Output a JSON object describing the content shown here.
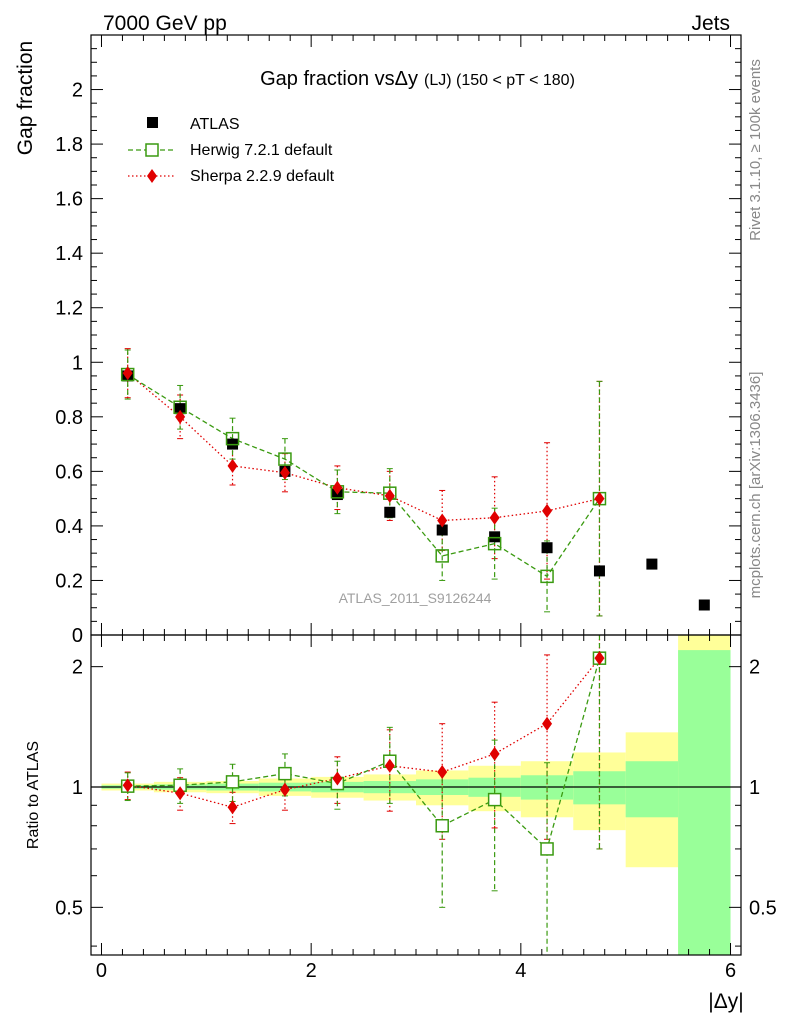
{
  "header": {
    "energy": "7000 GeV pp",
    "category": "Jets"
  },
  "chart_data": {
    "type": "scatter",
    "title": "Gap fraction vsΔy",
    "title_suffix": "(LJ) (150 < pT < 180)",
    "xlabel": "|Δy|",
    "ylabel": "Gap fraction",
    "ratio_ylabel": "Ratio to ATLAS",
    "xlim": [
      -0.1,
      6.1
    ],
    "ylim": [
      0,
      2.2
    ],
    "ratio_ylim": [
      0.38,
      2.4
    ],
    "x_ticks": [
      "0",
      "2",
      "4",
      "6"
    ],
    "y_ticks": [
      "0",
      "0.2",
      "0.4",
      "0.6",
      "0.8",
      "1",
      "1.2",
      "1.4",
      "1.6",
      "1.8",
      "2"
    ],
    "ratio_ticks": [
      "0.5",
      "1",
      "2"
    ],
    "analysis_tag": "ATLAS_2011_S9126244",
    "side_label_top": "Rivet 3.1.10, ≥ 100k events",
    "side_label_bottom": "mcplots.cern.ch [arXiv:1306.3436]",
    "x": [
      0.25,
      0.75,
      1.25,
      1.75,
      2.25,
      2.75,
      3.25,
      3.75,
      4.25,
      4.75,
      5.25,
      5.75
    ],
    "series": [
      {
        "name": "ATLAS",
        "color": "#000000",
        "values": [
          0.95,
          0.83,
          0.7,
          0.6,
          0.515,
          0.45,
          0.385,
          0.36,
          0.32,
          0.235,
          0.26,
          0.11
        ],
        "errors": [
          0.01,
          0.01,
          0.01,
          0.01,
          0.01,
          0.012,
          0.015,
          0.018,
          0.02,
          0.02,
          0.02,
          0.02
        ]
      },
      {
        "name": "Herwig 7.2.1 default",
        "color": "#3a9a10",
        "values": [
          0.955,
          0.835,
          0.72,
          0.645,
          0.525,
          0.52,
          0.29,
          0.335,
          0.215,
          0.5
        ],
        "errors": [
          0.09,
          0.08,
          0.075,
          0.075,
          0.08,
          0.09,
          0.09,
          0.13,
          0.13,
          0.43
        ]
      },
      {
        "name": "Sherpa 2.2.9 default",
        "color": "#e00000",
        "values": [
          0.96,
          0.8,
          0.62,
          0.595,
          0.54,
          0.51,
          0.42,
          0.43,
          0.455,
          0.5
        ],
        "errors": [
          0.09,
          0.08,
          0.07,
          0.07,
          0.08,
          0.09,
          0.11,
          0.15,
          0.25,
          0.43
        ]
      }
    ],
    "ratio": {
      "herwig": [
        1.005,
        1.01,
        1.03,
        1.08,
        1.02,
        1.16,
        0.8,
        0.93,
        0.7,
        2.1
      ],
      "herwig_errors": [
        0.08,
        0.1,
        0.11,
        0.13,
        0.14,
        0.25,
        0.3,
        0.38,
        0.45,
        1.4
      ],
      "sherpa": [
        1.01,
        0.965,
        0.89,
        0.985,
        1.05,
        1.13,
        1.09,
        1.21,
        1.44,
        2.1
      ],
      "sherpa_errors": [
        0.08,
        0.09,
        0.08,
        0.11,
        0.14,
        0.26,
        0.35,
        0.42,
        0.7,
        1.4
      ],
      "band_edges": [
        0.0,
        0.5,
        1.0,
        1.5,
        2.0,
        2.5,
        3.0,
        3.5,
        4.0,
        4.5,
        5.0,
        5.5,
        6.0
      ],
      "band_inner": [
        0.01,
        0.015,
        0.02,
        0.025,
        0.03,
        0.035,
        0.045,
        0.055,
        0.07,
        0.095,
        0.16,
        1.2
      ],
      "band_outer": [
        0.02,
        0.03,
        0.035,
        0.05,
        0.06,
        0.075,
        0.1,
        0.13,
        0.16,
        0.22,
        0.37,
        1.6
      ]
    }
  }
}
